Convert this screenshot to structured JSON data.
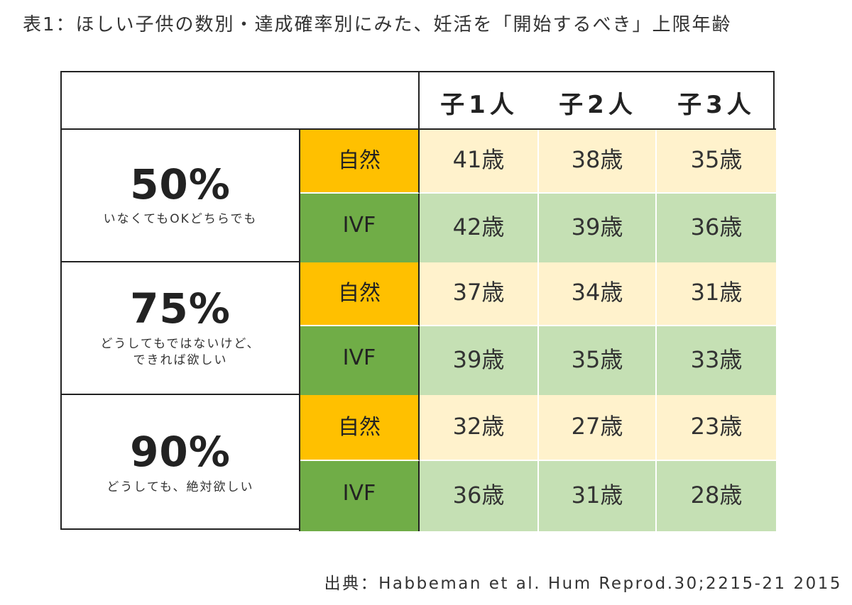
{
  "title": "表1：ほしい子供の数別・達成確率別にみた、妊活を「開始するべき」上限年齢",
  "source": "出典：Habbeman et al. Hum Reprod.30;2215-21 2015",
  "columns": [
    "子1人",
    "子2人",
    "子3人"
  ],
  "groups": [
    {
      "probability": "50%",
      "description": "いなくてもOKどちらでも",
      "rows": [
        {
          "method": "自然",
          "values": [
            "41歳",
            "38歳",
            "35歳"
          ]
        },
        {
          "method": "IVF",
          "values": [
            "42歳",
            "39歳",
            "36歳"
          ]
        }
      ]
    },
    {
      "probability": "75%",
      "description": "どうしてもではないけど、\nできれば欲しい",
      "rows": [
        {
          "method": "自然",
          "values": [
            "37歳",
            "34歳",
            "31歳"
          ]
        },
        {
          "method": "IVF",
          "values": [
            "39歳",
            "35歳",
            "33歳"
          ]
        }
      ]
    },
    {
      "probability": "90%",
      "description": "どうしても、絶対欲しい",
      "rows": [
        {
          "method": "自然",
          "values": [
            "32歳",
            "27歳",
            "23歳"
          ]
        },
        {
          "method": "IVF",
          "values": [
            "36歳",
            "31歳",
            "28歳"
          ]
        }
      ]
    }
  ],
  "colors": {
    "natural_label": "#ffc000",
    "ivf_label": "#70ad47",
    "natural_cell": "#fff2cc",
    "ivf_cell": "#c5e0b4"
  }
}
